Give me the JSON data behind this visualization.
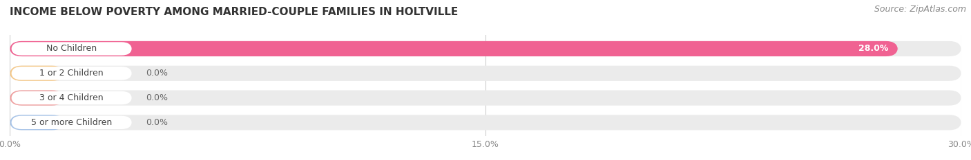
{
  "title": "INCOME BELOW POVERTY AMONG MARRIED-COUPLE FAMILIES IN HOLTVILLE",
  "source": "Source: ZipAtlas.com",
  "categories": [
    "No Children",
    "1 or 2 Children",
    "3 or 4 Children",
    "5 or more Children"
  ],
  "values": [
    28.0,
    0.0,
    0.0,
    0.0
  ],
  "bar_colors": [
    "#f06292",
    "#f0c080",
    "#f08080",
    "#a8c4e8"
  ],
  "label_bg_colors": [
    "#f06292",
    "#f5c98a",
    "#f0a0a0",
    "#a8c4e8"
  ],
  "background_color": "#ffffff",
  "bar_bg_color": "#ebebeb",
  "xlim": [
    0,
    30.0
  ],
  "xticks": [
    0.0,
    15.0,
    30.0
  ],
  "xtick_labels": [
    "0.0%",
    "15.0%",
    "30.0%"
  ],
  "title_fontsize": 11,
  "label_fontsize": 9,
  "value_fontsize": 9,
  "source_fontsize": 9
}
